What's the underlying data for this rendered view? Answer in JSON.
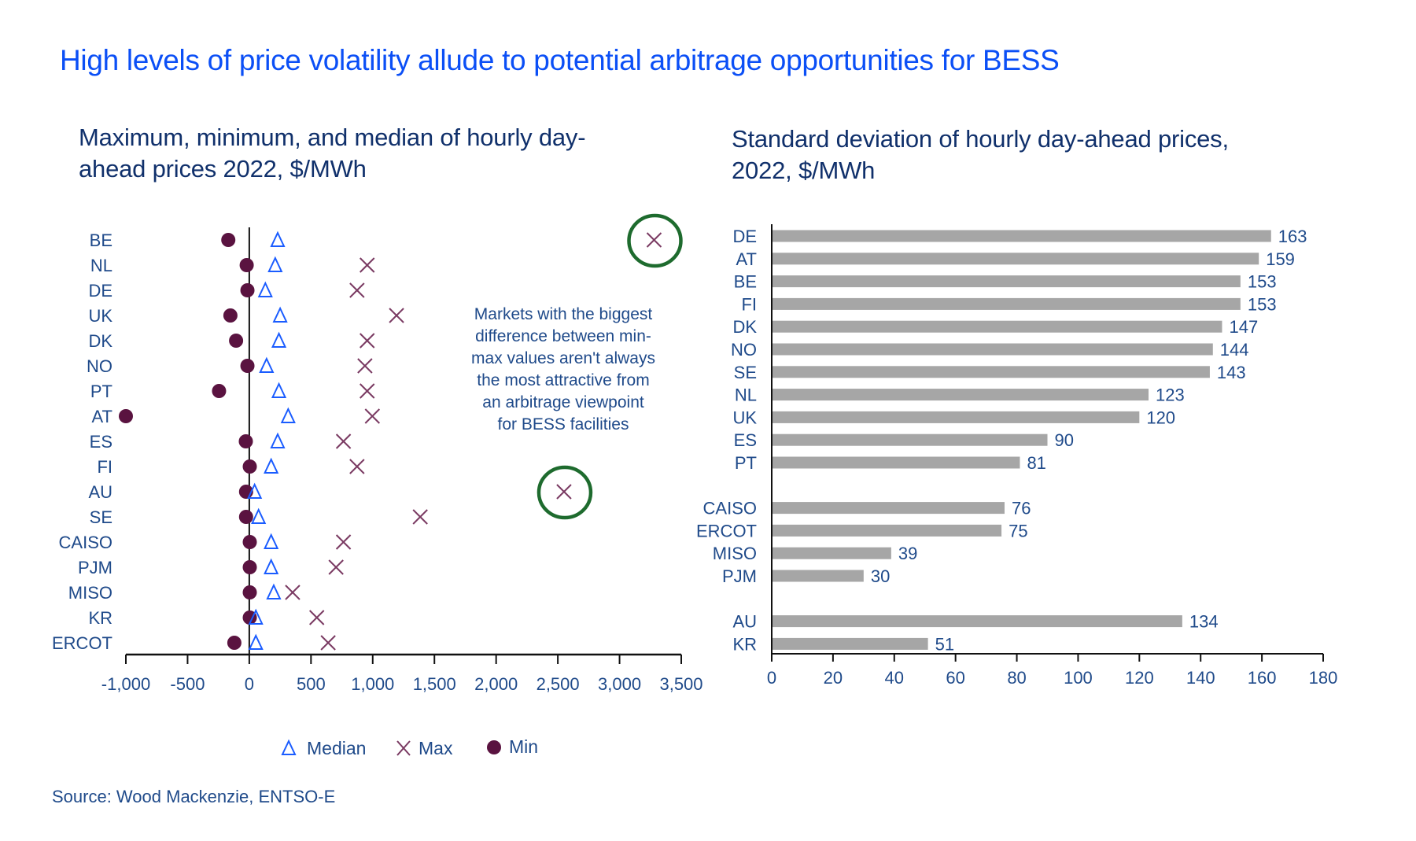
{
  "page": {
    "title": "High levels of price volatility allude to potential arbitrage opportunities for BESS",
    "source": "Source: Wood Mackenzie, ENTSO-E"
  },
  "colors": {
    "title": "#0b4ff6",
    "text": "#1f4a8a",
    "median": "#1a5cff",
    "max": "#7a3a62",
    "min": "#5a1340",
    "bar": "#a6a6a6",
    "highlight_circle": "#1e6b2e",
    "axis": "#111111"
  },
  "chart_data": [
    {
      "type": "scatter",
      "title": "Maximum, minimum, and median of hourly day-ahead prices 2022, $/MWh",
      "title_lines": [
        "Maximum, minimum, and median of hourly day-",
        "ahead prices 2022, $/MWh"
      ],
      "xlabel": "",
      "ylabel": "",
      "xlim": [
        -1000,
        3500
      ],
      "xticks": [
        -1000,
        -500,
        0,
        500,
        1000,
        1500,
        2000,
        2500,
        3000,
        3500
      ],
      "xtick_labels": [
        "-1,000",
        "-500",
        "0",
        "500",
        "1,000",
        "1,500",
        "2,000",
        "2,500",
        "3,000",
        "3,500"
      ],
      "grid": false,
      "legend_position": "bottom",
      "categories": [
        "BE",
        "NL",
        "DE",
        "UK",
        "DK",
        "NO",
        "PT",
        "AT",
        "ES",
        "FI",
        "AU",
        "SE",
        "CAISO",
        "PJM",
        "MISO",
        "KR",
        "ERCOT"
      ],
      "series": [
        {
          "name": "Median",
          "marker": "triangle",
          "values": [
            230,
            210,
            130,
            250,
            240,
            140,
            240,
            315,
            230,
            177,
            43,
            75,
            177,
            177,
            198,
            53,
            53
          ]
        },
        {
          "name": "Max",
          "marker": "x",
          "values": [
            3280,
            955,
            873,
            1193,
            955,
            937,
            955,
            997,
            763,
            873,
            2550,
            1385,
            763,
            703,
            351,
            547,
            639
          ]
        },
        {
          "name": "Min",
          "marker": "circle",
          "values": [
            -170,
            -21,
            -15,
            -153,
            -107,
            -15,
            -245,
            -1000,
            -28,
            4,
            -26,
            -26,
            4,
            4,
            4,
            4,
            -121
          ]
        }
      ],
      "highlighted": [
        {
          "category": "BE",
          "series": "Max"
        },
        {
          "category": "AU",
          "series": "Max"
        }
      ],
      "annotation": {
        "lines": [
          "Markets with the biggest",
          "difference between min-",
          "max values aren't always",
          "the most attractive from",
          "an arbitrage viewpoint",
          "for BESS facilities"
        ]
      }
    },
    {
      "type": "bar",
      "orientation": "horizontal",
      "title": "Standard deviation of hourly day-ahead prices, 2022, $/MWh",
      "title_lines": [
        "Standard deviation of hourly day-ahead prices,",
        "2022, $/MWh"
      ],
      "xlabel": "",
      "ylabel": "",
      "xlim": [
        0,
        180
      ],
      "xticks": [
        0,
        20,
        40,
        60,
        80,
        100,
        120,
        140,
        160,
        180
      ],
      "grid": false,
      "groups": [
        {
          "categories": [
            "DE",
            "AT",
            "BE",
            "FI",
            "DK",
            "NO",
            "SE",
            "NL",
            "UK",
            "ES",
            "PT"
          ],
          "values": [
            163,
            159,
            153,
            153,
            147,
            144,
            143,
            123,
            120,
            90,
            81
          ]
        },
        {
          "categories": [
            "CAISO",
            "ERCOT",
            "MISO",
            "PJM"
          ],
          "values": [
            76,
            75,
            39,
            30
          ]
        },
        {
          "categories": [
            "AU",
            "KR"
          ],
          "values": [
            134,
            51
          ]
        }
      ]
    }
  ]
}
